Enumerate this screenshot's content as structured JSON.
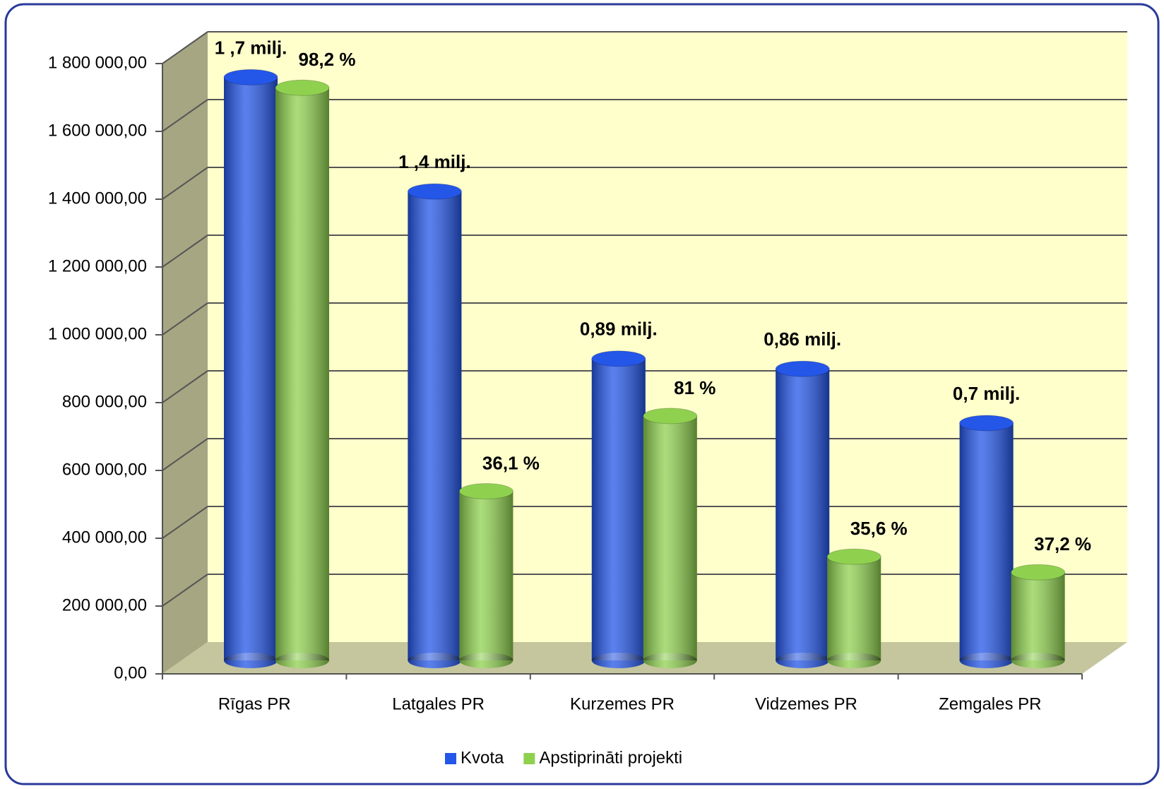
{
  "chart_data": {
    "type": "bar",
    "categories": [
      "Rīgas PR",
      "Latgales PR",
      "Kurzemes PR",
      "Vidzemes PR",
      "Zemgales PR"
    ],
    "series": [
      {
        "name": "Kvota",
        "color": "#2456e8",
        "values": [
          1720000,
          1383000,
          890000,
          860000,
          700000
        ],
        "value_labels": [
          "1 ,7 milj.",
          "1 ,4 milj.",
          "0,89 milj.",
          "0,86 milj.",
          "0,7 milj."
        ]
      },
      {
        "name": "Apstiprināti projekti",
        "color": "#8fd14f",
        "values": [
          1689000,
          499000,
          721000,
          306000,
          260000
        ]
      }
    ],
    "annotations": [
      "98,2 %",
      "36,1 %",
      "81 %",
      "35,6 %",
      "37,2 %"
    ],
    "ylim": [
      0,
      1800000
    ],
    "yticks": [
      {
        "value": 0,
        "label": "0,00"
      },
      {
        "value": 200000,
        "label": "200 000,00"
      },
      {
        "value": 400000,
        "label": "400 000,00"
      },
      {
        "value": 600000,
        "label": "600 000,00"
      },
      {
        "value": 800000,
        "label": "800 000,00"
      },
      {
        "value": 1000000,
        "label": "1 000 000,00"
      },
      {
        "value": 1200000,
        "label": "1 200 000,00"
      },
      {
        "value": 1400000,
        "label": "1 400 000,00"
      },
      {
        "value": 1600000,
        "label": "1 600 000,00"
      },
      {
        "value": 1800000,
        "label": "1 800 000,00"
      }
    ],
    "grid": true,
    "legend": "bottom"
  }
}
